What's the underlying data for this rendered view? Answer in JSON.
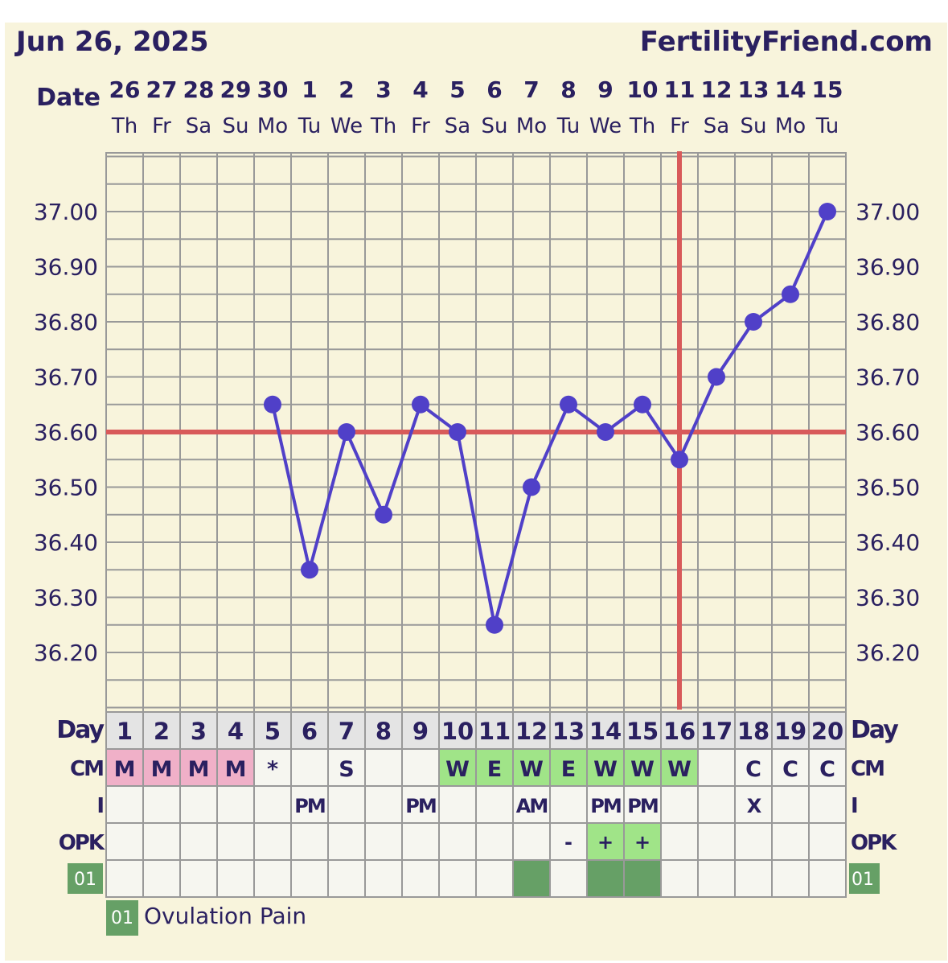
{
  "header": {
    "date": "Jun 26, 2025",
    "site": "FertilityFriend.com"
  },
  "labels": {
    "date": "Date",
    "day": "Day",
    "cm": "CM",
    "i": "I",
    "opk": "OPK",
    "symptom_code": "01"
  },
  "legend": [
    {
      "code": "01",
      "label": "Ovulation Pain",
      "color": "#66a066"
    }
  ],
  "colors": {
    "temp_line": "#5040c8",
    "coverline": "#d85a5a",
    "grid": "#999999",
    "menses": "#f0b0c8",
    "fertile_cm": "#a0e488",
    "opk_positive": "#a0e488",
    "symptom": "#66a066",
    "text": "#2a2060",
    "background": "#f8f4dc"
  },
  "chart_data": {
    "type": "line",
    "y_tick_labels": [
      "37.00",
      "36.90",
      "36.80",
      "36.70",
      "36.60",
      "36.50",
      "36.40",
      "36.30",
      "36.20"
    ],
    "ylim": [
      36.1,
      37.1
    ],
    "grid": true,
    "dates": [
      "26",
      "27",
      "28",
      "29",
      "30",
      "1",
      "2",
      "3",
      "4",
      "5",
      "6",
      "7",
      "8",
      "9",
      "10",
      "11",
      "12",
      "13",
      "14",
      "15"
    ],
    "weekdays": [
      "Th",
      "Fr",
      "Sa",
      "Su",
      "Mo",
      "Tu",
      "We",
      "Th",
      "Fr",
      "Sa",
      "Su",
      "Mo",
      "Tu",
      "We",
      "Th",
      "Fr",
      "Sa",
      "Su",
      "Mo",
      "Tu"
    ],
    "days": [
      "1",
      "2",
      "3",
      "4",
      "5",
      "6",
      "7",
      "8",
      "9",
      "10",
      "11",
      "12",
      "13",
      "14",
      "15",
      "16",
      "17",
      "18",
      "19",
      "20"
    ],
    "temperatures": [
      null,
      null,
      null,
      null,
      36.65,
      36.35,
      36.6,
      36.45,
      36.65,
      36.6,
      36.25,
      36.5,
      36.65,
      36.6,
      36.65,
      36.55,
      36.7,
      36.8,
      36.85,
      37.0
    ],
    "coverline": 36.6,
    "ovulation_day": 16,
    "cm": [
      "M",
      "M",
      "M",
      "M",
      "*",
      "",
      "S",
      "",
      "",
      "W",
      "E",
      "W",
      "E",
      "W",
      "W",
      "W",
      "",
      "C",
      "C",
      "C"
    ],
    "intercourse": [
      "",
      "",
      "",
      "",
      "",
      "PM",
      "",
      "",
      "PM",
      "",
      "",
      "AM",
      "",
      "PM",
      "PM",
      "",
      "",
      "X",
      "",
      ""
    ],
    "opk": [
      "",
      "",
      "",
      "",
      "",
      "",
      "",
      "",
      "",
      "",
      "",
      "",
      "-",
      "+",
      "+",
      "",
      "",
      "",
      "",
      ""
    ],
    "ovulation_pain": [
      false,
      false,
      false,
      false,
      false,
      false,
      false,
      false,
      false,
      false,
      false,
      true,
      false,
      true,
      true,
      false,
      false,
      false,
      false,
      false
    ]
  }
}
